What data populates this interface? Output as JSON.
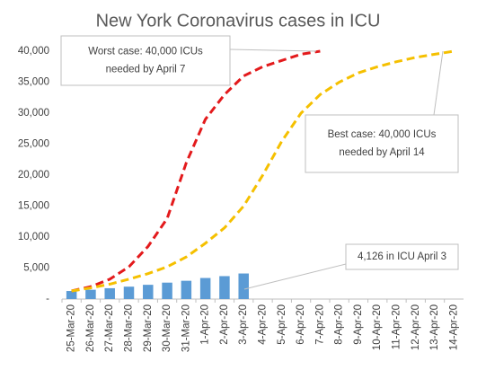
{
  "chart_data": {
    "type": "bar_line",
    "title": "New York Coronavirus cases in ICU",
    "categories": [
      "25-Mar-20",
      "26-Mar-20",
      "27-Mar-20",
      "28-Mar-20",
      "29-Mar-20",
      "30-Mar-20",
      "31-Mar-20",
      "1-Apr-20",
      "2-Apr-20",
      "3-Apr-20",
      "4-Apr-20",
      "5-Apr-20",
      "6-Apr-20",
      "7-Apr-20",
      "8-Apr-20",
      "9-Apr-20",
      "10-Apr-20",
      "11-Apr-20",
      "12-Apr-20",
      "13-Apr-20",
      "14-Apr-20"
    ],
    "series": [
      {
        "kind": "bar",
        "color": "#5b9bd5",
        "values": [
          1300,
          1500,
          1750,
          2000,
          2300,
          2650,
          2950,
          3400,
          3700,
          4126,
          null,
          null,
          null,
          null,
          null,
          null,
          null,
          null,
          null,
          null,
          null
        ]
      },
      {
        "kind": "line",
        "color": "#e31a1c",
        "values": [
          1300,
          2000,
          3200,
          5200,
          8500,
          13000,
          22000,
          29000,
          33000,
          36000,
          37500,
          38500,
          39500,
          40000,
          null,
          null,
          null,
          null,
          null,
          null,
          null
        ]
      },
      {
        "kind": "line",
        "color": "#f5c000",
        "values": [
          1300,
          1800,
          2400,
          3200,
          4100,
          5200,
          6800,
          9000,
          11500,
          15000,
          20000,
          25500,
          30000,
          33000,
          35000,
          36500,
          37500,
          38300,
          39000,
          39500,
          40000
        ]
      }
    ],
    "ylim": [
      0,
      40000
    ],
    "yticks": [
      {
        "value": 0,
        "label": "-"
      },
      {
        "value": 5000,
        "label": "5,000"
      },
      {
        "value": 10000,
        "label": "10,000"
      },
      {
        "value": 15000,
        "label": "15,000"
      },
      {
        "value": 20000,
        "label": "20,000"
      },
      {
        "value": 25000,
        "label": "25,000"
      },
      {
        "value": 30000,
        "label": "30,000"
      },
      {
        "value": 35000,
        "label": "35,000"
      },
      {
        "value": 40000,
        "label": "40,000"
      }
    ],
    "annotations": [
      {
        "lines": [
          "Worst case: 40,000  ICUs",
          "needed by April 7"
        ]
      },
      {
        "lines": [
          "Best case: 40,000  ICUs",
          "needed by April 14"
        ]
      },
      {
        "lines": [
          "4,126  in ICU April 3"
        ]
      }
    ]
  }
}
